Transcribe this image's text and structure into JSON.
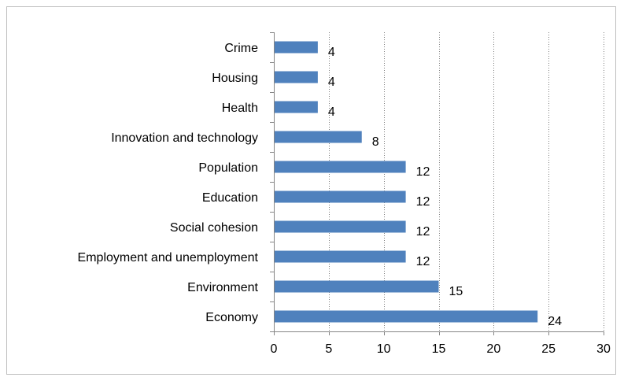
{
  "chart_data": {
    "type": "bar",
    "orientation": "horizontal",
    "categories": [
      "Crime",
      "Housing",
      "Health",
      "Innovation and technology",
      "Population",
      "Education",
      "Social cohesion",
      "Employment and unemployment",
      "Environment",
      "Economy"
    ],
    "values": [
      4,
      4,
      4,
      8,
      12,
      12,
      12,
      12,
      15,
      24
    ],
    "xlim": [
      0,
      30
    ],
    "xticks": [
      0,
      5,
      10,
      15,
      20,
      25,
      30
    ],
    "title": "",
    "xlabel": "",
    "ylabel": "",
    "grid": "vertical dotted",
    "data_labels": true,
    "legend": "none",
    "bar_color": "#4f81bd",
    "grid_color": "#808080",
    "axis_color": "#868686"
  }
}
